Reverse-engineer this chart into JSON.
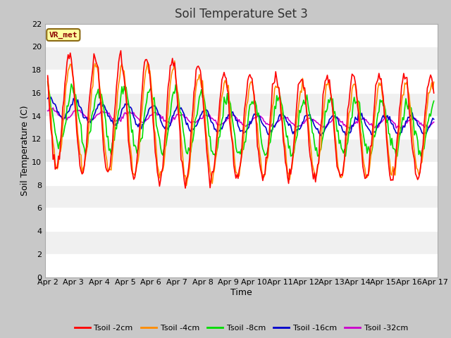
{
  "title": "Soil Temperature Set 3",
  "xlabel": "Time",
  "ylabel": "Soil Temperature (C)",
  "ylim": [
    0,
    22
  ],
  "yticks": [
    0,
    2,
    4,
    6,
    8,
    10,
    12,
    14,
    16,
    18,
    20,
    22
  ],
  "date_labels": [
    "Apr 2",
    "Apr 3",
    "Apr 4",
    "Apr 5",
    "Apr 6",
    "Apr 7",
    "Apr 8",
    "Apr 9",
    "Apr 10",
    "Apr 11",
    "Apr 12",
    "Apr 13",
    "Apr 14",
    "Apr 15",
    "Apr 16",
    "Apr 17"
  ],
  "colors": {
    "2cm": "#ff0000",
    "4cm": "#ff8c00",
    "8cm": "#00dd00",
    "16cm": "#0000cc",
    "32cm": "#cc00cc"
  },
  "legend_labels": [
    "Tsoil -2cm",
    "Tsoil -4cm",
    "Tsoil -8cm",
    "Tsoil -16cm",
    "Tsoil -32cm"
  ],
  "annotation_text": "VR_met",
  "fig_facecolor": "#c8c8c8",
  "plot_facecolor": "#f0f0f0",
  "grid_color": "#ffffff",
  "title_fontsize": 12,
  "axis_label_fontsize": 9,
  "tick_fontsize": 8
}
